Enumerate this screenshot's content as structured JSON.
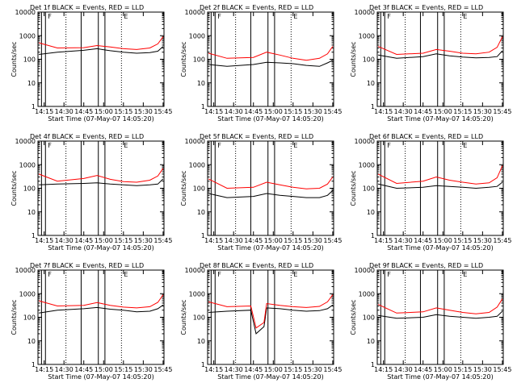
{
  "common": {
    "xlabel": "Start Time (07-May-07 14:05:20)",
    "ylabel": "Counts/sec",
    "x_tick_labels": [
      "14:15",
      "14:30",
      "14:45",
      "15:00",
      "15:15",
      "15:30",
      "15:45"
    ],
    "y_tick_labels": [
      "1",
      "10",
      "100",
      "1000",
      "10000"
    ],
    "x_range_min": [
      5.33,
      100.67
    ],
    "y_range": [
      1,
      10000
    ],
    "y_scale": "log",
    "line_colors": {
      "events": "#000000",
      "lld": "#ff0000"
    },
    "attenuator_marker": "F",
    "event_marker": "E"
  },
  "chart_data": [
    {
      "type": "line",
      "title": "Det 1f BLACK = Events, RED = LLD",
      "series": [
        {
          "name": "Events",
          "color": "#000000",
          "x_min": [
            6,
            20,
            40,
            50,
            60,
            70,
            80,
            90,
            96,
            100
          ],
          "values": [
            160,
            200,
            240,
            280,
            230,
            200,
            180,
            190,
            220,
            350
          ]
        },
        {
          "name": "LLD",
          "color": "#ff0000",
          "x_min": [
            6,
            20,
            40,
            50,
            60,
            70,
            80,
            90,
            96,
            100
          ],
          "values": [
            500,
            300,
            310,
            380,
            330,
            280,
            260,
            300,
            450,
            900
          ]
        }
      ]
    },
    {
      "type": "line",
      "title": "Det 2f BLACK = Events, RED = LLD",
      "series": [
        {
          "name": "Events",
          "color": "#000000",
          "x_min": [
            6,
            20,
            40,
            50,
            60,
            70,
            80,
            90,
            96,
            100
          ],
          "values": [
            60,
            50,
            60,
            75,
            70,
            65,
            55,
            50,
            70,
            90
          ]
        },
        {
          "name": "LLD",
          "color": "#ff0000",
          "x_min": [
            6,
            20,
            40,
            50,
            60,
            70,
            80,
            90,
            96,
            100
          ],
          "values": [
            180,
            110,
            120,
            200,
            150,
            110,
            90,
            110,
            170,
            350
          ]
        }
      ]
    },
    {
      "type": "line",
      "title": "Det 3f BLACK = Events, RED = LLD",
      "series": [
        {
          "name": "Events",
          "color": "#000000",
          "x_min": [
            6,
            20,
            40,
            50,
            60,
            70,
            80,
            90,
            96,
            100
          ],
          "values": [
            150,
            110,
            130,
            170,
            140,
            125,
            115,
            120,
            130,
            230
          ]
        },
        {
          "name": "LLD",
          "color": "#ff0000",
          "x_min": [
            6,
            20,
            40,
            50,
            60,
            70,
            80,
            90,
            96,
            100
          ],
          "values": [
            350,
            160,
            180,
            260,
            220,
            180,
            170,
            200,
            320,
            900
          ]
        }
      ]
    },
    {
      "type": "line",
      "title": "Det 4f BLACK = Events, RED = LLD",
      "series": [
        {
          "name": "Events",
          "color": "#000000",
          "x_min": [
            6,
            20,
            40,
            50,
            60,
            70,
            80,
            90,
            96,
            100
          ],
          "values": [
            140,
            150,
            160,
            170,
            150,
            140,
            130,
            140,
            150,
            250
          ]
        },
        {
          "name": "LLD",
          "color": "#ff0000",
          "x_min": [
            6,
            20,
            40,
            50,
            60,
            70,
            80,
            90,
            96,
            100
          ],
          "values": [
            400,
            200,
            260,
            350,
            240,
            190,
            180,
            220,
            330,
            700
          ]
        }
      ]
    },
    {
      "type": "line",
      "title": "Det 5f BLACK = Events, RED = LLD",
      "series": [
        {
          "name": "Events",
          "color": "#000000",
          "x_min": [
            6,
            20,
            40,
            50,
            60,
            70,
            80,
            90,
            96,
            100
          ],
          "values": [
            60,
            40,
            45,
            60,
            50,
            45,
            40,
            40,
            50,
            80
          ]
        },
        {
          "name": "LLD",
          "color": "#ff0000",
          "x_min": [
            6,
            20,
            40,
            50,
            60,
            70,
            80,
            90,
            96,
            100
          ],
          "values": [
            250,
            100,
            110,
            180,
            140,
            110,
            95,
            100,
            150,
            300
          ]
        }
      ]
    },
    {
      "type": "line",
      "title": "Det 6f BLACK = Events, RED = LLD",
      "series": [
        {
          "name": "Events",
          "color": "#000000",
          "x_min": [
            6,
            20,
            40,
            50,
            60,
            70,
            80,
            90,
            96,
            100
          ],
          "values": [
            150,
            100,
            110,
            130,
            120,
            110,
            100,
            110,
            120,
            180
          ]
        },
        {
          "name": "LLD",
          "color": "#ff0000",
          "x_min": [
            6,
            20,
            40,
            50,
            60,
            70,
            80,
            90,
            96,
            100
          ],
          "values": [
            400,
            160,
            200,
            300,
            220,
            180,
            150,
            170,
            280,
            900
          ]
        }
      ]
    },
    {
      "type": "line",
      "title": "Det 7f BLACK = Events, RED = LLD",
      "series": [
        {
          "name": "Events",
          "color": "#000000",
          "x_min": [
            6,
            20,
            40,
            50,
            60,
            70,
            80,
            90,
            96,
            100
          ],
          "values": [
            150,
            200,
            230,
            260,
            220,
            200,
            170,
            180,
            230,
            330
          ]
        },
        {
          "name": "LLD",
          "color": "#ff0000",
          "x_min": [
            6,
            20,
            40,
            50,
            60,
            70,
            80,
            90,
            96,
            100
          ],
          "values": [
            500,
            300,
            320,
            420,
            320,
            270,
            250,
            280,
            430,
            900
          ]
        }
      ]
    },
    {
      "type": "line",
      "title": "Det 8f BLACK = Events, RED = LLD",
      "series": [
        {
          "name": "Events",
          "color": "#000000",
          "x_min": [
            6,
            20,
            38,
            42,
            48,
            50,
            60,
            70,
            80,
            90,
            96,
            100
          ],
          "values": [
            160,
            180,
            200,
            20,
            40,
            250,
            230,
            200,
            180,
            190,
            230,
            330
          ]
        },
        {
          "name": "LLD",
          "color": "#ff0000",
          "x_min": [
            6,
            20,
            38,
            42,
            48,
            50,
            60,
            70,
            80,
            90,
            96,
            100
          ],
          "values": [
            450,
            280,
            300,
            35,
            60,
            380,
            320,
            280,
            260,
            290,
            450,
            900
          ]
        }
      ]
    },
    {
      "type": "line",
      "title": "Det 9f BLACK = Events, RED = LLD",
      "series": [
        {
          "name": "Events",
          "color": "#000000",
          "x_min": [
            6,
            20,
            40,
            50,
            60,
            70,
            80,
            90,
            96,
            100
          ],
          "values": [
            120,
            90,
            100,
            130,
            110,
            100,
            90,
            100,
            110,
            180
          ]
        },
        {
          "name": "LLD",
          "color": "#ff0000",
          "x_min": [
            6,
            20,
            40,
            50,
            60,
            70,
            80,
            90,
            96,
            100
          ],
          "values": [
            350,
            150,
            170,
            250,
            200,
            160,
            140,
            160,
            270,
            600
          ]
        }
      ]
    }
  ]
}
